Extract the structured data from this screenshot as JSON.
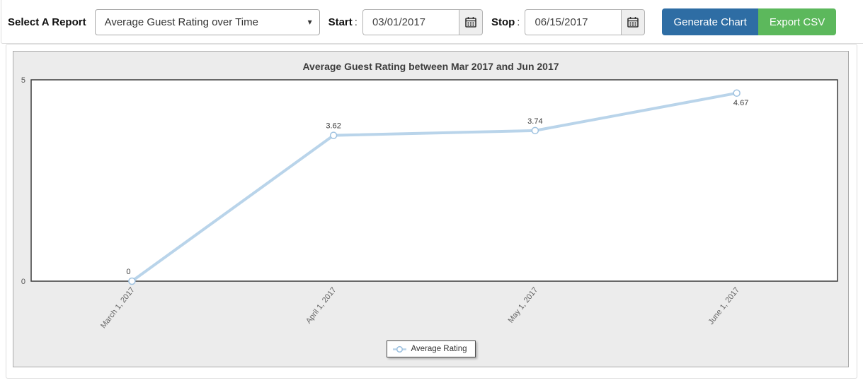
{
  "toolbar": {
    "select_report_label": "Select A Report",
    "report_select_value": "Average Guest Rating over Time",
    "caret_glyph": "▾",
    "start_label": "Start",
    "stop_label": "Stop",
    "colon": ":",
    "start_value": "03/01/2017",
    "stop_value": "06/15/2017",
    "generate_chart_label": "Generate Chart",
    "export_csv_label": "Export CSV",
    "generate_color": "#2e6da4",
    "export_color": "#5cb85c"
  },
  "chart_data": {
    "type": "line",
    "title": "Average Guest Rating between Mar 2017 and Jun 2017",
    "categories": [
      "March 1, 2017",
      "April 1, 2017",
      "May 1, 2017",
      "June 1, 2017"
    ],
    "series": [
      {
        "name": "Average Rating",
        "values": [
          0,
          3.62,
          3.74,
          4.67
        ]
      }
    ],
    "point_labels": [
      "0",
      "3.62",
      "3.74",
      "4.67"
    ],
    "ylim": [
      0,
      5
    ],
    "y_ticks": [
      0,
      5
    ],
    "xlabel": "",
    "ylabel": "",
    "grid": false,
    "legend": {
      "label": "Average Rating",
      "position": "bottom"
    },
    "line_color": "#b9d4ea",
    "marker_stroke": "#9fc2e0",
    "marker_fill": "#ffffff"
  }
}
